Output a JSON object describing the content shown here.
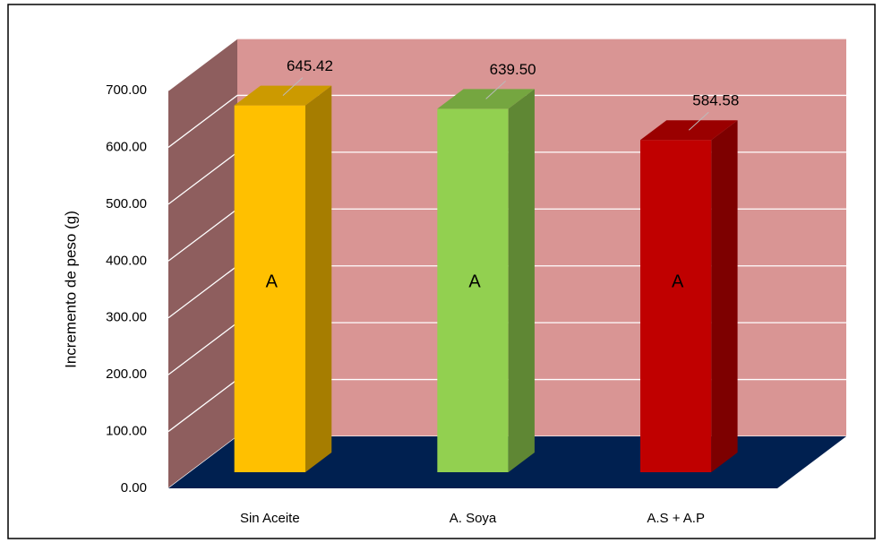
{
  "chart_data": {
    "type": "bar3d",
    "y_label": "Incremento de peso (g)",
    "categories": [
      "Sin Aceite",
      "A. Soya",
      "A.S + A.P"
    ],
    "values": [
      645.42,
      639.5,
      584.58
    ],
    "value_labels": [
      "645.42",
      "639.50",
      "584.58"
    ],
    "annotations": [
      "A",
      "A",
      "A"
    ],
    "colors": [
      "#ffc000",
      "#92d050",
      "#c00000"
    ],
    "ylim": [
      0,
      700
    ],
    "yticks": [
      {
        "value": 0,
        "label": "0.00"
      },
      {
        "value": 100,
        "label": "100.00"
      },
      {
        "value": 200,
        "label": "200.00"
      },
      {
        "value": 300,
        "label": "300.00"
      },
      {
        "value": 400,
        "label": "400.00"
      },
      {
        "value": 500,
        "label": "500.00"
      },
      {
        "value": 600,
        "label": "600.00"
      },
      {
        "value": 700,
        "label": "700.00"
      }
    ],
    "grid": true
  }
}
